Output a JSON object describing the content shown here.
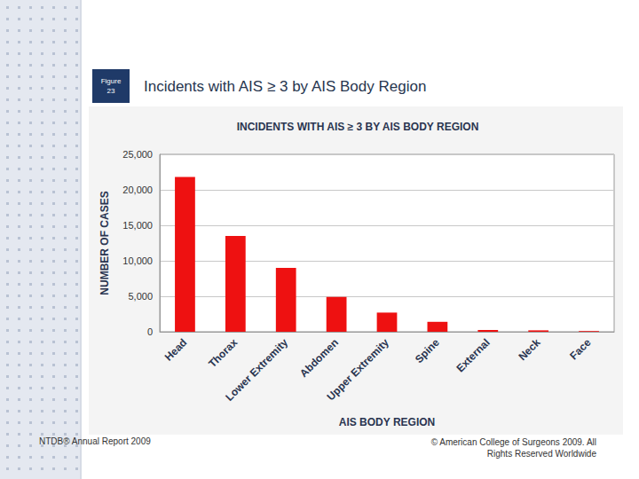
{
  "slide": {
    "figure_label": [
      "Figure",
      "23"
    ],
    "heading": "Incidents with AIS ≥ 3 by AIS Body Region",
    "footer_left": "NTDB® Annual Report 2009",
    "footer_right": [
      "© American College of Surgeons 2009.  All",
      "Rights Reserved Worldwide"
    ]
  },
  "chart_data": {
    "type": "bar",
    "title": "INCIDENTS WITH AIS ≥ 3 BY AIS BODY REGION",
    "x_label": "AIS BODY REGION",
    "y_label": "NUMBER OF CASES",
    "categories": [
      "Head",
      "Thorax",
      "Lower Extremity",
      "Abdomen",
      "Upper Extremity",
      "Spine",
      "External",
      "Neck",
      "Face"
    ],
    "values": [
      21800,
      13500,
      9000,
      4900,
      2700,
      1400,
      250,
      200,
      100
    ],
    "color": "#ee1111",
    "ylim": [
      0,
      25000
    ],
    "yticks": [
      0,
      {
        "value": 5000,
        "label": "5,000"
      },
      {
        "value": 10000,
        "label": "10,000"
      },
      {
        "value": 15000,
        "label": "15,000"
      },
      {
        "value": 20000,
        "label": "20,000"
      },
      {
        "value": 25000,
        "label": "25,000"
      }
    ],
    "grid": true
  }
}
